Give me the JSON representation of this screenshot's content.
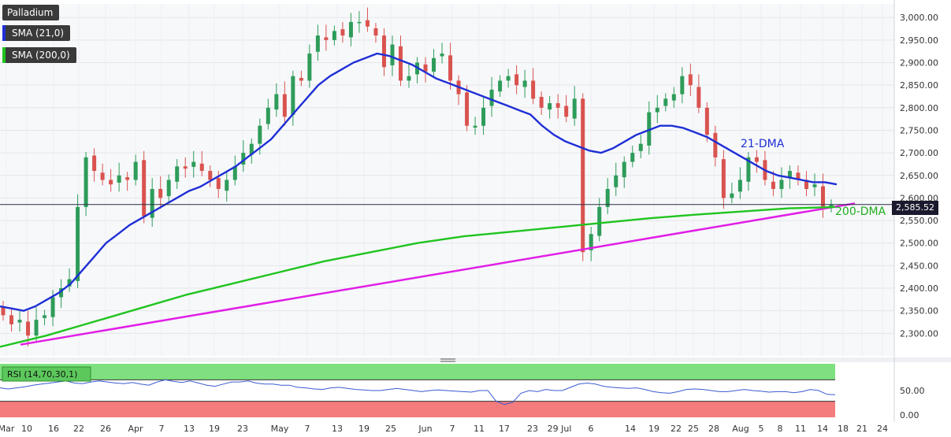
{
  "legend": {
    "instrument": "Palladium",
    "sma21": "SMA (21,0)",
    "sma200": "SMA (200,0)",
    "sma21_color": "#1f2fd6",
    "sma200_color": "#1fc41f"
  },
  "current_price": "2,585.52",
  "annotations": {
    "dma21": "21-DMA",
    "dma200": "200-DMA"
  },
  "rsi": {
    "label": "RSI (14,70,30,1)",
    "upper": 70,
    "lower": 30,
    "ticks": [
      "50.00",
      "0.00"
    ],
    "values": [
      55,
      53,
      55,
      57,
      60,
      62,
      64,
      66,
      68,
      64,
      63,
      66,
      68,
      66,
      64,
      63,
      65,
      62,
      60,
      66,
      70,
      67,
      65,
      68,
      64,
      60,
      58,
      62,
      66,
      66,
      68,
      64,
      62,
      62,
      60,
      60,
      56,
      55,
      53,
      52,
      55,
      56,
      54,
      52,
      51,
      50,
      50,
      52,
      54,
      52,
      50,
      48,
      50,
      51,
      50,
      49,
      48,
      47,
      50,
      50,
      30,
      24,
      28,
      45,
      50,
      48,
      52,
      50,
      50,
      56,
      62,
      64,
      62,
      58,
      56,
      55,
      54,
      55,
      52,
      48,
      46,
      45,
      48,
      52,
      53,
      52,
      50,
      48,
      48,
      50,
      52,
      50,
      49,
      47,
      48,
      48,
      46,
      48,
      52,
      50,
      43,
      42
    ]
  },
  "chart_data": {
    "type": "candlestick",
    "title": "Palladium",
    "ylim": [
      2250,
      3030
    ],
    "yticks": [
      "3,000.00",
      "2,950.00",
      "2,900.00",
      "2,850.00",
      "2,800.00",
      "2,750.00",
      "2,700.00",
      "2,650.00",
      "2,600.00",
      "2,550.00",
      "2,500.00",
      "2,450.00",
      "2,400.00",
      "2,350.00",
      "2,300.00"
    ],
    "x_ticks": [
      "Mar",
      "10",
      "16",
      "22",
      "26",
      "Apr",
      "7",
      "13",
      "19",
      "23",
      "May",
      "7",
      "13",
      "19",
      "25",
      "Jun",
      "7",
      "11",
      "17",
      "23",
      "29 Jul",
      "6",
      "14",
      "19",
      "22",
      "25",
      "28",
      "Aug",
      "5",
      "8",
      "11",
      "14",
      "18",
      "21",
      "24"
    ],
    "closes": [
      2340,
      2320,
      2330,
      2295,
      2330,
      2340,
      2380,
      2400,
      2420,
      2580,
      2690,
      2660,
      2640,
      2630,
      2650,
      2640,
      2680,
      2560,
      2620,
      2600,
      2640,
      2670,
      2665,
      2680,
      2660,
      2640,
      2620,
      2640,
      2670,
      2700,
      2720,
      2760,
      2800,
      2830,
      2780,
      2870,
      2860,
      2920,
      2960,
      2950,
      2970,
      2960,
      2990,
      2990,
      2980,
      2960,
      2890,
      2940,
      2860,
      2870,
      2900,
      2880,
      2910,
      2920,
      2860,
      2830,
      2760,
      2760,
      2800,
      2840,
      2860,
      2870,
      2850,
      2860,
      2820,
      2800,
      2810,
      2800,
      2780,
      2820,
      2480,
      2520,
      2580,
      2620,
      2650,
      2680,
      2700,
      2720,
      2790,
      2800,
      2820,
      2830,
      2870,
      2850,
      2800,
      2740,
      2690,
      2600,
      2610,
      2640,
      2690,
      2680,
      2640,
      2620,
      2640,
      2660,
      2640,
      2620,
      2630,
      2580,
      2585
    ],
    "sma21": [
      2360,
      2355,
      2350,
      2360,
      2375,
      2390,
      2410,
      2440,
      2470,
      2500,
      2520,
      2540,
      2555,
      2570,
      2585,
      2600,
      2615,
      2625,
      2640,
      2655,
      2670,
      2690,
      2710,
      2730,
      2760,
      2790,
      2820,
      2850,
      2870,
      2885,
      2900,
      2910,
      2920,
      2915,
      2905,
      2895,
      2880,
      2865,
      2855,
      2845,
      2835,
      2825,
      2815,
      2805,
      2795,
      2785,
      2760,
      2740,
      2725,
      2715,
      2705,
      2700,
      2710,
      2725,
      2740,
      2750,
      2760,
      2760,
      2755,
      2745,
      2735,
      2720,
      2705,
      2690,
      2675,
      2660,
      2650,
      2645,
      2640,
      2635,
      2635,
      2630
    ],
    "sma200": [
      2270,
      2295,
      2325,
      2355,
      2385,
      2410,
      2435,
      2460,
      2480,
      2500,
      2515,
      2525,
      2535,
      2545,
      2555,
      2563,
      2570,
      2577,
      2580
    ]
  }
}
